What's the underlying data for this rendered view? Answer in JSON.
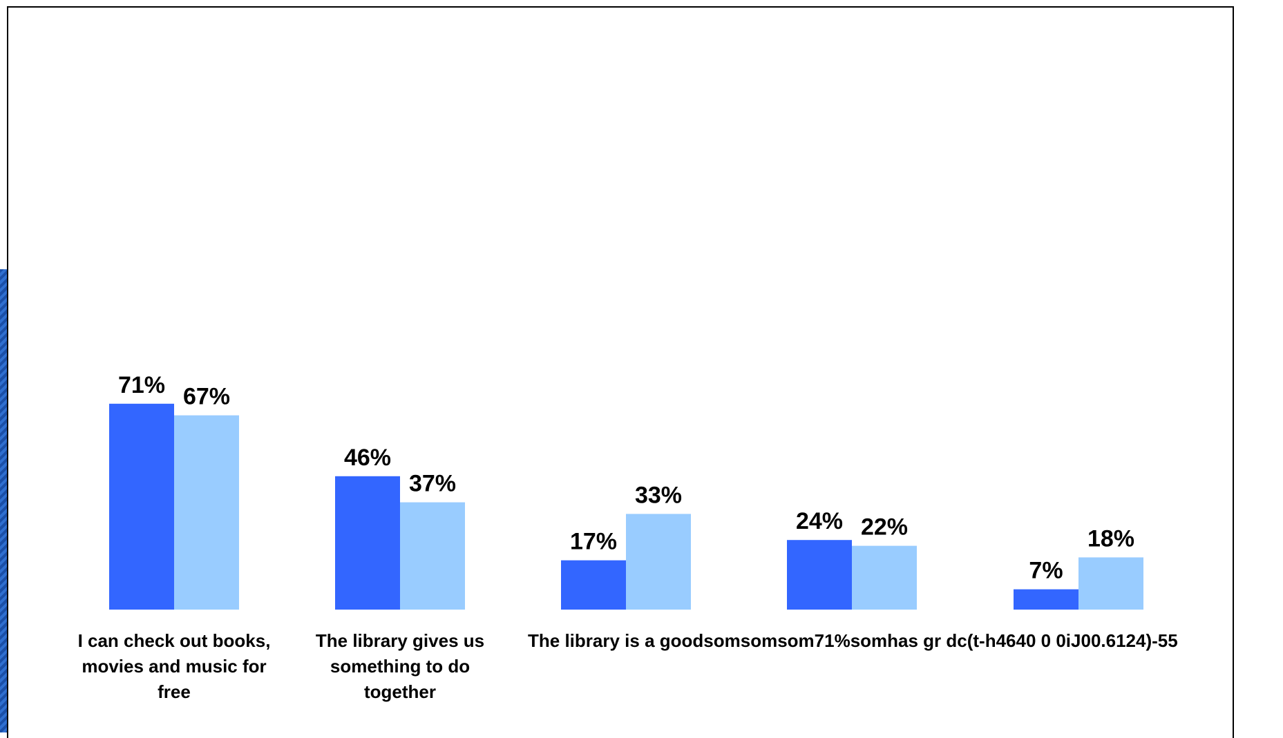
{
  "chart_data": {
    "type": "bar",
    "categories": [
      [
        "I can check out books,",
        "movies and music for",
        "free"
      ],
      [
        "The library gives us",
        "something to do",
        "together"
      ],
      [
        "The library is a goodsomsomsom71%somhas   gr   dc(t-h4640   0   0iJ00.6124)-55"
      ],
      [],
      []
    ],
    "series": [
      {
        "values": [
          71,
          46,
          17,
          24,
          7
        ],
        "labels": [
          "71%",
          "46%",
          "17%",
          "24%",
          "7%"
        ]
      },
      {
        "values": [
          67,
          37,
          33,
          22,
          18
        ],
        "labels": [
          "67%",
          "37%",
          "33%",
          "22%",
          "18%"
        ]
      }
    ],
    "ylim": [
      0,
      100
    ],
    "grid": false,
    "legend": "none"
  },
  "colors": {
    "series1": "#3366ff",
    "series2": "#99ccff",
    "text": "#000000"
  }
}
